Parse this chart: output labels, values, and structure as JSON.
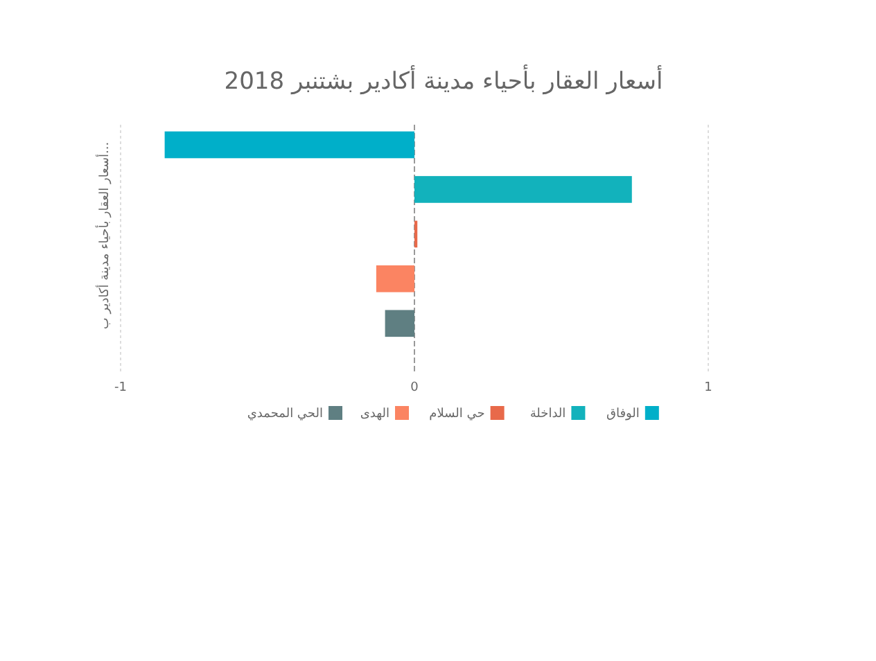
{
  "chart_data": {
    "type": "bar",
    "orientation": "horizontal",
    "title": "أسعار العقار بأحياء مدينة أكادير بشتنبر 2018",
    "ylabel": "أسعار العقار بأحياء مدينة أكادير ب...",
    "categories": [
      null,
      null,
      null,
      null,
      null
    ],
    "series": [
      {
        "name": "الوفاق",
        "color": "#00afc9",
        "values": [
          -0.85,
          null,
          null,
          null,
          null
        ]
      },
      {
        "name": "الداخلة",
        "color": "#12b2bc",
        "values": [
          null,
          0.74,
          null,
          null,
          null
        ]
      },
      {
        "name": "حي السلام",
        "color": "#e8694a",
        "values": [
          null,
          null,
          0.01,
          null,
          null
        ]
      },
      {
        "name": "الهدى",
        "color": "#fb8462",
        "values": [
          null,
          null,
          null,
          -0.13,
          null
        ]
      },
      {
        "name": "الحي المحمدي",
        "color": "#5f7f82",
        "values": [
          null,
          null,
          null,
          null,
          -0.1
        ]
      }
    ],
    "xlim": [
      -1,
      1
    ],
    "xticks": [
      -1,
      0,
      1
    ],
    "grid": "x",
    "legend": "bottom"
  }
}
